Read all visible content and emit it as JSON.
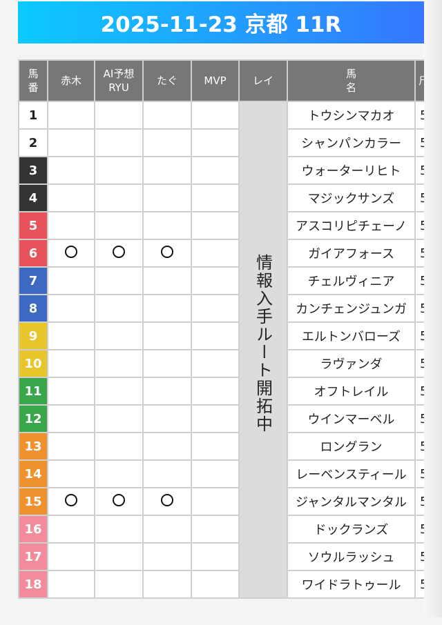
{
  "title": "2025-11-23 京都 11R",
  "headers": {
    "num": "馬\n番",
    "akagi": "赤木",
    "ai": "AI予想\nRYU",
    "tagu": "たぐ",
    "mvp": "MVP",
    "rei": "レイ",
    "name": "馬\n名",
    "last": "斤"
  },
  "rei_note": "情報入手ルート開拓中",
  "mark_symbol": "○",
  "frame_colors": {
    "1": "#ffffff",
    "2": "#333333",
    "3": "#e8525a",
    "4": "#3e69c0",
    "5": "#e8c52c",
    "6": "#3aa64a",
    "7": "#ef912f",
    "8": "#f08c9e"
  },
  "rows": [
    {
      "num": "1",
      "frame": 1,
      "name": "トウシンマカオ",
      "w": "5",
      "akagi": false,
      "ai": false,
      "tagu": false
    },
    {
      "num": "2",
      "frame": 1,
      "name": "シャンパンカラー",
      "w": "5",
      "akagi": false,
      "ai": false,
      "tagu": false
    },
    {
      "num": "3",
      "frame": 2,
      "name": "ウォーターリヒト",
      "w": "5",
      "akagi": false,
      "ai": false,
      "tagu": false
    },
    {
      "num": "4",
      "frame": 2,
      "name": "マジックサンズ",
      "w": "5",
      "akagi": false,
      "ai": false,
      "tagu": false
    },
    {
      "num": "5",
      "frame": 3,
      "name": "アスコリピチェーノ",
      "w": "5",
      "akagi": false,
      "ai": false,
      "tagu": false
    },
    {
      "num": "6",
      "frame": 3,
      "name": "ガイアフォース",
      "w": "5",
      "akagi": true,
      "ai": true,
      "tagu": true
    },
    {
      "num": "7",
      "frame": 4,
      "name": "チェルヴィニア",
      "w": "5",
      "akagi": false,
      "ai": false,
      "tagu": false
    },
    {
      "num": "8",
      "frame": 4,
      "name": "カンチェンジュンガ",
      "w": "5",
      "akagi": false,
      "ai": false,
      "tagu": false
    },
    {
      "num": "9",
      "frame": 5,
      "name": "エルトンバローズ",
      "w": "5",
      "akagi": false,
      "ai": false,
      "tagu": false
    },
    {
      "num": "10",
      "frame": 5,
      "name": "ラヴァンダ",
      "w": "5",
      "akagi": false,
      "ai": false,
      "tagu": false
    },
    {
      "num": "11",
      "frame": 6,
      "name": "オフトレイル",
      "w": "5",
      "akagi": false,
      "ai": false,
      "tagu": false
    },
    {
      "num": "12",
      "frame": 6,
      "name": "ウインマーベル",
      "w": "5",
      "akagi": false,
      "ai": false,
      "tagu": false
    },
    {
      "num": "13",
      "frame": 7,
      "name": "ロングラン",
      "w": "5",
      "akagi": false,
      "ai": false,
      "tagu": false
    },
    {
      "num": "14",
      "frame": 7,
      "name": "レーベンスティール",
      "w": "5",
      "akagi": false,
      "ai": false,
      "tagu": false
    },
    {
      "num": "15",
      "frame": 7,
      "name": "ジャンタルマンタル",
      "w": "5",
      "akagi": true,
      "ai": true,
      "tagu": true
    },
    {
      "num": "16",
      "frame": 8,
      "name": "ドックランズ",
      "w": "5",
      "akagi": false,
      "ai": false,
      "tagu": false
    },
    {
      "num": "17",
      "frame": 8,
      "name": "ソウルラッシュ",
      "w": "5",
      "akagi": false,
      "ai": false,
      "tagu": false
    },
    {
      "num": "18",
      "frame": 8,
      "name": "ワイドラトゥール",
      "w": "5",
      "akagi": false,
      "ai": false,
      "tagu": false
    }
  ]
}
